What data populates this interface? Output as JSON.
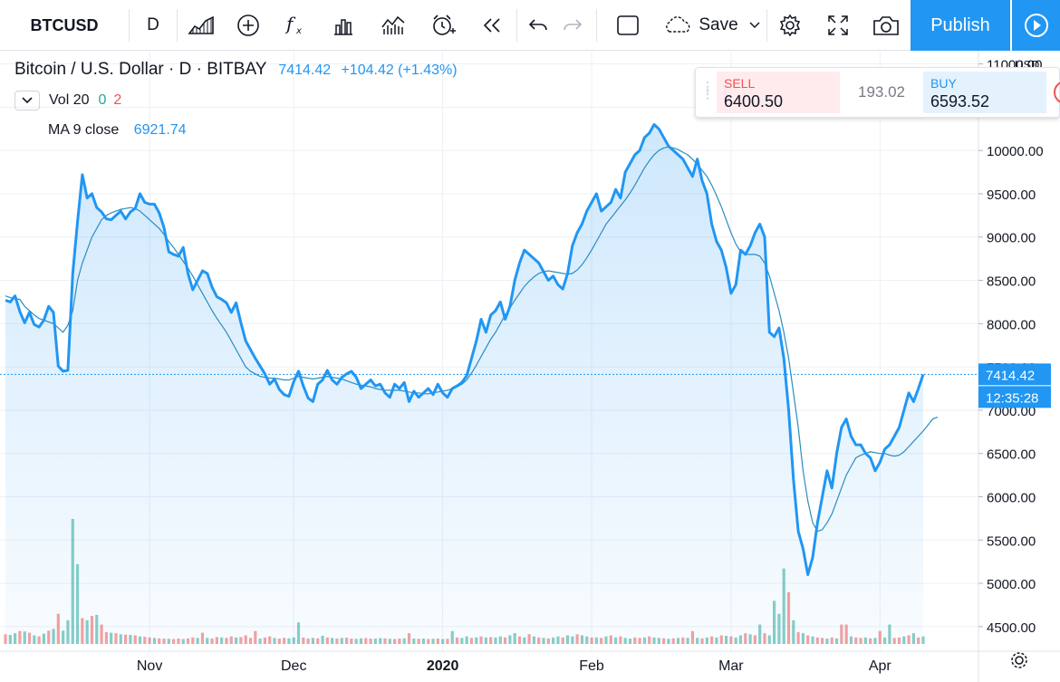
{
  "toolbar": {
    "symbol": "BTCUSD",
    "interval": "D",
    "save_label": "Save",
    "publish_label": "Publish"
  },
  "legend": {
    "title": "Bitcoin / U.S. Dollar · D · BITBAY",
    "price": "7414.42",
    "change": "+104.42 (+1.43%)",
    "vol_label": "Vol 20",
    "vol_value1": "0",
    "vol_value2": "2",
    "ma_label": "MA 9 close",
    "ma_value": "6921.74"
  },
  "trade_panel": {
    "sell_label": "SELL",
    "sell_price": "6400.50",
    "spread": "193.02",
    "buy_label": "BUY",
    "buy_price": "6593.52"
  },
  "price_tags": {
    "last_price": "7414.42",
    "countdown": "12:35:28"
  },
  "colors": {
    "line": "#2196f3",
    "ma": "#2b8cbf",
    "volume_up": "#26a69a",
    "volume_down": "#ef5350",
    "accent": "#2196f3"
  },
  "chart_data": {
    "type": "area",
    "title": "Bitcoin / U.S. Dollar",
    "ylim": [
      4300,
      11100
    ],
    "y_ticks": [
      "11000.00",
      "10500.00",
      "10000.00",
      "9500.00",
      "9000.00",
      "8500.00",
      "8000.00",
      "7500.00",
      "7000.00",
      "6500.00",
      "6000.00",
      "5500.00",
      "5000.00",
      "4500.00"
    ],
    "y_unit": "USD",
    "x_ticks": [
      {
        "label": "Nov",
        "index": 30
      },
      {
        "label": "Dec",
        "index": 60
      },
      {
        "label": "2020",
        "index": 91
      },
      {
        "label": "Feb",
        "index": 122
      },
      {
        "label": "Mar",
        "index": 151
      },
      {
        "label": "Apr",
        "index": 182
      }
    ],
    "series": [
      {
        "name": "BTCUSD",
        "values": [
          8270,
          8250,
          8320,
          8140,
          8010,
          8130,
          7990,
          7960,
          8040,
          8200,
          8130,
          7510,
          7450,
          7460,
          8580,
          9180,
          9720,
          9450,
          9500,
          9340,
          9290,
          9210,
          9200,
          9250,
          9300,
          9210,
          9290,
          9330,
          9500,
          9400,
          9380,
          9380,
          9280,
          9110,
          8830,
          8800,
          8780,
          8880,
          8580,
          8390,
          8500,
          8610,
          8580,
          8420,
          8310,
          8280,
          8240,
          8130,
          8240,
          8010,
          7800,
          7700,
          7600,
          7510,
          7420,
          7300,
          7360,
          7240,
          7180,
          7160,
          7330,
          7450,
          7280,
          7140,
          7100,
          7300,
          7350,
          7460,
          7350,
          7300,
          7380,
          7420,
          7450,
          7380,
          7250,
          7300,
          7350,
          7280,
          7300,
          7200,
          7150,
          7300,
          7250,
          7320,
          7100,
          7220,
          7150,
          7200,
          7250,
          7180,
          7300,
          7200,
          7150,
          7250,
          7280,
          7320,
          7400,
          7600,
          7800,
          8050,
          7900,
          8100,
          8150,
          8250,
          8050,
          8200,
          8500,
          8700,
          8850,
          8800,
          8750,
          8700,
          8600,
          8500,
          8550,
          8450,
          8400,
          8580,
          8900,
          9050,
          9150,
          9300,
          9400,
          9500,
          9300,
          9350,
          9400,
          9550,
          9450,
          9750,
          9850,
          9950,
          10000,
          10150,
          10200,
          10300,
          10250,
          10150,
          10050,
          10000,
          9950,
          9900,
          9800,
          9700,
          9900,
          9650,
          9500,
          9150,
          8950,
          8850,
          8650,
          8350,
          8450,
          8850,
          8800,
          8900,
          9050,
          9150,
          9000,
          7900,
          7850,
          7950,
          7600,
          7000,
          6200,
          5600,
          5400,
          5100,
          5300,
          5700,
          6000,
          6300,
          6100,
          6500,
          6800,
          6900,
          6700,
          6600,
          6600,
          6500,
          6450,
          6300,
          6400,
          6550,
          6600,
          6700,
          6800,
          7000,
          7200,
          7100,
          7250,
          7414
        ]
      },
      {
        "name": "MA 9 close",
        "values": [
          8320,
          8300,
          8290,
          8280,
          8200,
          8150,
          8100,
          8060,
          8040,
          8020,
          8000,
          7950,
          7900,
          7980,
          8150,
          8500,
          8700,
          8850,
          9000,
          9100,
          9200,
          9250,
          9280,
          9300,
          9320,
          9330,
          9340,
          9330,
          9300,
          9250,
          9200,
          9150,
          9100,
          9030,
          8950,
          8880,
          8800,
          8720,
          8640,
          8550,
          8450,
          8350,
          8250,
          8150,
          8060,
          7980,
          7900,
          7800,
          7700,
          7600,
          7500,
          7450,
          7420,
          7390,
          7380,
          7370,
          7370,
          7360,
          7350,
          7350,
          7370,
          7390,
          7380,
          7370,
          7360,
          7370,
          7380,
          7390,
          7380,
          7370,
          7360,
          7340,
          7320,
          7300,
          7290,
          7280,
          7270,
          7250,
          7240,
          7230,
          7230,
          7230,
          7230,
          7220,
          7210,
          7200,
          7200,
          7190,
          7190,
          7200,
          7210,
          7220,
          7230,
          7250,
          7270,
          7300,
          7350,
          7430,
          7520,
          7620,
          7720,
          7820,
          7900,
          8000,
          8100,
          8180,
          8270,
          8350,
          8430,
          8490,
          8540,
          8580,
          8600,
          8610,
          8600,
          8590,
          8580,
          8570,
          8580,
          8620,
          8680,
          8760,
          8850,
          8950,
          9050,
          9150,
          9220,
          9290,
          9360,
          9430,
          9510,
          9600,
          9700,
          9800,
          9880,
          9950,
          10000,
          10030,
          10040,
          10030,
          10010,
          9980,
          9950,
          9900,
          9840,
          9770,
          9700,
          9600,
          9480,
          9350,
          9200,
          9050,
          8920,
          8830,
          8800,
          8800,
          8800,
          8780,
          8700,
          8550,
          8350,
          8150,
          7900,
          7600,
          7200,
          6800,
          6300,
          5950,
          5700,
          5600,
          5620,
          5700,
          5800,
          5950,
          6100,
          6250,
          6350,
          6450,
          6480,
          6500,
          6520,
          6510,
          6500,
          6500,
          6480,
          6470,
          6480,
          6520,
          6580,
          6640,
          6700,
          6760,
          6830,
          6900,
          6920
        ]
      }
    ],
    "volume_ylim": [
      0,
      6300
    ],
    "volume": [
      {
        "v": 450,
        "d": 1
      },
      {
        "v": 420,
        "d": 0
      },
      {
        "v": 500,
        "d": 0
      },
      {
        "v": 600,
        "d": 1
      },
      {
        "v": 580,
        "d": 0
      },
      {
        "v": 520,
        "d": 1
      },
      {
        "v": 400,
        "d": 0
      },
      {
        "v": 350,
        "d": 1
      },
      {
        "v": 480,
        "d": 0
      },
      {
        "v": 620,
        "d": 1
      },
      {
        "v": 700,
        "d": 0
      },
      {
        "v": 1400,
        "d": 1
      },
      {
        "v": 620,
        "d": 0
      },
      {
        "v": 1100,
        "d": 0
      },
      {
        "v": 5800,
        "d": 0
      },
      {
        "v": 3700,
        "d": 0
      },
      {
        "v": 1200,
        "d": 1
      },
      {
        "v": 1100,
        "d": 0
      },
      {
        "v": 1300,
        "d": 1
      },
      {
        "v": 1350,
        "d": 0
      },
      {
        "v": 900,
        "d": 1
      },
      {
        "v": 550,
        "d": 1
      },
      {
        "v": 520,
        "d": 0
      },
      {
        "v": 500,
        "d": 1
      },
      {
        "v": 450,
        "d": 0
      },
      {
        "v": 430,
        "d": 1
      },
      {
        "v": 420,
        "d": 0
      },
      {
        "v": 400,
        "d": 1
      },
      {
        "v": 350,
        "d": 0
      },
      {
        "v": 330,
        "d": 1
      },
      {
        "v": 300,
        "d": 1
      },
      {
        "v": 280,
        "d": 0
      },
      {
        "v": 260,
        "d": 1
      },
      {
        "v": 250,
        "d": 1
      },
      {
        "v": 240,
        "d": 0
      },
      {
        "v": 230,
        "d": 1
      },
      {
        "v": 250,
        "d": 1
      },
      {
        "v": 230,
        "d": 0
      },
      {
        "v": 260,
        "d": 1
      },
      {
        "v": 300,
        "d": 1
      },
      {
        "v": 280,
        "d": 0
      },
      {
        "v": 520,
        "d": 1
      },
      {
        "v": 280,
        "d": 0
      },
      {
        "v": 250,
        "d": 1
      },
      {
        "v": 320,
        "d": 1
      },
      {
        "v": 300,
        "d": 0
      },
      {
        "v": 280,
        "d": 1
      },
      {
        "v": 350,
        "d": 1
      },
      {
        "v": 300,
        "d": 0
      },
      {
        "v": 320,
        "d": 1
      },
      {
        "v": 400,
        "d": 1
      },
      {
        "v": 280,
        "d": 1
      },
      {
        "v": 600,
        "d": 1
      },
      {
        "v": 250,
        "d": 0
      },
      {
        "v": 300,
        "d": 1
      },
      {
        "v": 350,
        "d": 1
      },
      {
        "v": 280,
        "d": 0
      },
      {
        "v": 250,
        "d": 1
      },
      {
        "v": 280,
        "d": 1
      },
      {
        "v": 260,
        "d": 0
      },
      {
        "v": 300,
        "d": 0
      },
      {
        "v": 1000,
        "d": 0
      },
      {
        "v": 300,
        "d": 1
      },
      {
        "v": 250,
        "d": 1
      },
      {
        "v": 280,
        "d": 0
      },
      {
        "v": 260,
        "d": 1
      },
      {
        "v": 380,
        "d": 0
      },
      {
        "v": 300,
        "d": 1
      },
      {
        "v": 280,
        "d": 0
      },
      {
        "v": 250,
        "d": 1
      },
      {
        "v": 280,
        "d": 0
      },
      {
        "v": 290,
        "d": 1
      },
      {
        "v": 250,
        "d": 1
      },
      {
        "v": 240,
        "d": 0
      },
      {
        "v": 260,
        "d": 0
      },
      {
        "v": 270,
        "d": 1
      },
      {
        "v": 250,
        "d": 1
      },
      {
        "v": 250,
        "d": 0
      },
      {
        "v": 270,
        "d": 0
      },
      {
        "v": 260,
        "d": 1
      },
      {
        "v": 240,
        "d": 0
      },
      {
        "v": 230,
        "d": 1
      },
      {
        "v": 250,
        "d": 1
      },
      {
        "v": 260,
        "d": 0
      },
      {
        "v": 500,
        "d": 1
      },
      {
        "v": 250,
        "d": 0
      },
      {
        "v": 240,
        "d": 1
      },
      {
        "v": 250,
        "d": 0
      },
      {
        "v": 230,
        "d": 1
      },
      {
        "v": 240,
        "d": 0
      },
      {
        "v": 250,
        "d": 1
      },
      {
        "v": 230,
        "d": 0
      },
      {
        "v": 240,
        "d": 1
      },
      {
        "v": 600,
        "d": 0
      },
      {
        "v": 300,
        "d": 1
      },
      {
        "v": 280,
        "d": 0
      },
      {
        "v": 350,
        "d": 0
      },
      {
        "v": 280,
        "d": 1
      },
      {
        "v": 300,
        "d": 0
      },
      {
        "v": 350,
        "d": 1
      },
      {
        "v": 300,
        "d": 0
      },
      {
        "v": 320,
        "d": 1
      },
      {
        "v": 300,
        "d": 0
      },
      {
        "v": 350,
        "d": 0
      },
      {
        "v": 300,
        "d": 1
      },
      {
        "v": 400,
        "d": 0
      },
      {
        "v": 500,
        "d": 0
      },
      {
        "v": 350,
        "d": 1
      },
      {
        "v": 300,
        "d": 0
      },
      {
        "v": 450,
        "d": 1
      },
      {
        "v": 350,
        "d": 0
      },
      {
        "v": 300,
        "d": 1
      },
      {
        "v": 280,
        "d": 0
      },
      {
        "v": 260,
        "d": 1
      },
      {
        "v": 300,
        "d": 0
      },
      {
        "v": 350,
        "d": 0
      },
      {
        "v": 300,
        "d": 1
      },
      {
        "v": 400,
        "d": 0
      },
      {
        "v": 350,
        "d": 0
      },
      {
        "v": 450,
        "d": 1
      },
      {
        "v": 400,
        "d": 0
      },
      {
        "v": 350,
        "d": 0
      },
      {
        "v": 300,
        "d": 1
      },
      {
        "v": 300,
        "d": 0
      },
      {
        "v": 280,
        "d": 1
      },
      {
        "v": 350,
        "d": 0
      },
      {
        "v": 400,
        "d": 1
      },
      {
        "v": 300,
        "d": 0
      },
      {
        "v": 350,
        "d": 1
      },
      {
        "v": 280,
        "d": 0
      },
      {
        "v": 250,
        "d": 0
      },
      {
        "v": 300,
        "d": 1
      },
      {
        "v": 280,
        "d": 1
      },
      {
        "v": 300,
        "d": 0
      },
      {
        "v": 350,
        "d": 1
      },
      {
        "v": 300,
        "d": 0
      },
      {
        "v": 280,
        "d": 0
      },
      {
        "v": 260,
        "d": 1
      },
      {
        "v": 240,
        "d": 0
      },
      {
        "v": 260,
        "d": 1
      },
      {
        "v": 280,
        "d": 0
      },
      {
        "v": 300,
        "d": 1
      },
      {
        "v": 280,
        "d": 0
      },
      {
        "v": 600,
        "d": 1
      },
      {
        "v": 280,
        "d": 0
      },
      {
        "v": 260,
        "d": 1
      },
      {
        "v": 300,
        "d": 0
      },
      {
        "v": 350,
        "d": 1
      },
      {
        "v": 300,
        "d": 0
      },
      {
        "v": 400,
        "d": 1
      },
      {
        "v": 380,
        "d": 0
      },
      {
        "v": 350,
        "d": 1
      },
      {
        "v": 300,
        "d": 0
      },
      {
        "v": 400,
        "d": 0
      },
      {
        "v": 500,
        "d": 1
      },
      {
        "v": 450,
        "d": 0
      },
      {
        "v": 400,
        "d": 1
      },
      {
        "v": 900,
        "d": 0
      },
      {
        "v": 500,
        "d": 1
      },
      {
        "v": 400,
        "d": 0
      },
      {
        "v": 2000,
        "d": 0
      },
      {
        "v": 1400,
        "d": 0
      },
      {
        "v": 3500,
        "d": 0
      },
      {
        "v": 2400,
        "d": 1
      },
      {
        "v": 1100,
        "d": 0
      },
      {
        "v": 550,
        "d": 1
      },
      {
        "v": 500,
        "d": 0
      },
      {
        "v": 400,
        "d": 1
      },
      {
        "v": 350,
        "d": 0
      },
      {
        "v": 300,
        "d": 1
      },
      {
        "v": 280,
        "d": 1
      },
      {
        "v": 250,
        "d": 0
      },
      {
        "v": 300,
        "d": 1
      },
      {
        "v": 260,
        "d": 0
      },
      {
        "v": 900,
        "d": 1
      },
      {
        "v": 900,
        "d": 1
      },
      {
        "v": 350,
        "d": 0
      },
      {
        "v": 300,
        "d": 1
      },
      {
        "v": 280,
        "d": 1
      },
      {
        "v": 300,
        "d": 0
      },
      {
        "v": 260,
        "d": 1
      },
      {
        "v": 280,
        "d": 0
      },
      {
        "v": 600,
        "d": 1
      },
      {
        "v": 300,
        "d": 0
      },
      {
        "v": 900,
        "d": 0
      },
      {
        "v": 280,
        "d": 1
      },
      {
        "v": 300,
        "d": 1
      },
      {
        "v": 350,
        "d": 0
      },
      {
        "v": 400,
        "d": 1
      },
      {
        "v": 500,
        "d": 0
      },
      {
        "v": 300,
        "d": 1
      },
      {
        "v": 350,
        "d": 0
      }
    ]
  }
}
